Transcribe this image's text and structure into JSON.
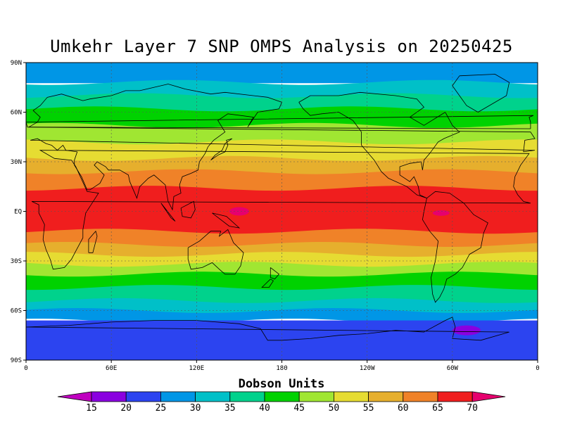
{
  "title": "Umkehr Layer 7 SNP OMPS Analysis on 20250425",
  "map": {
    "lat_labels": [
      "90N",
      "60N",
      "30N",
      "EQ",
      "30S",
      "60S",
      "90S"
    ],
    "lon_labels": [
      "0",
      "60E",
      "120E",
      "180",
      "120W",
      "60W",
      "0"
    ],
    "contour_levels": [
      15,
      20,
      25,
      30,
      35,
      40,
      45,
      50,
      55,
      60,
      65,
      70
    ],
    "colors": {
      "below_15": "#c000c0",
      "15_20": "#8a00e0",
      "20_25": "#2c44f0",
      "25_30": "#0096e6",
      "30_35": "#00c0c8",
      "35_40": "#00d28c",
      "40_45": "#00d200",
      "45_50": "#a0e632",
      "50_55": "#e6dc32",
      "55_60": "#e6af2d",
      "60_65": "#f08228",
      "65_70": "#f01e1e",
      "above_70": "#e6006e"
    }
  },
  "colorbar": {
    "title": "Dobson Units",
    "labels": [
      "15",
      "20",
      "25",
      "30",
      "35",
      "40",
      "45",
      "50",
      "55",
      "60",
      "65",
      "70"
    ]
  }
}
